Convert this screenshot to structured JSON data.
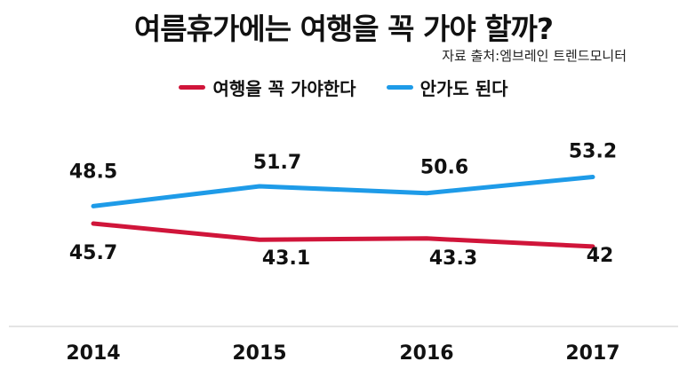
{
  "chart_data": {
    "type": "line",
    "title": "여름휴가에는 여행을 꼭 가야 할까?",
    "source": "자료 출처:엠브레인 트렌드모니터",
    "categories": [
      "2014",
      "2015",
      "2016",
      "2017"
    ],
    "series": [
      {
        "name": "여행을 꼭 가야한다",
        "color": "#d0153a",
        "values": [
          45.7,
          43.1,
          43.3,
          42
        ]
      },
      {
        "name": "안가도 된다",
        "color": "#1e9be8",
        "values": [
          48.5,
          51.7,
          50.6,
          53.2
        ]
      }
    ],
    "legend_position": "top-center",
    "grid": false
  }
}
